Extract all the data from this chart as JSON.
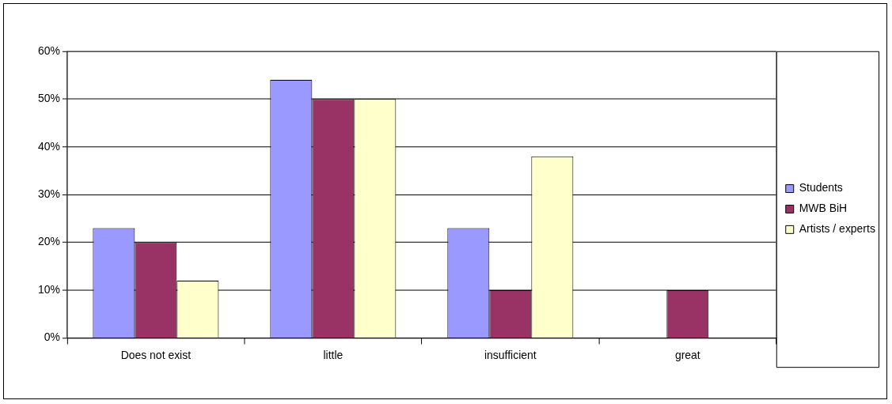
{
  "chart_data": {
    "type": "bar",
    "categories": [
      "Does not exist",
      "little",
      "insufficient",
      "great"
    ],
    "series": [
      {
        "name": "Students",
        "color": "#9999ff",
        "values": [
          23,
          54,
          23,
          0
        ]
      },
      {
        "name": "MWB BiH",
        "color": "#993366",
        "values": [
          20,
          50,
          10,
          10
        ]
      },
      {
        "name": "Artists / experts",
        "color": "#ffffcc",
        "values": [
          12,
          50,
          38,
          0
        ]
      }
    ],
    "ylim": [
      0,
      60
    ],
    "yticks": [
      {
        "value": 0,
        "label": "0%"
      },
      {
        "value": 10,
        "label": "10%"
      },
      {
        "value": 20,
        "label": "20%"
      },
      {
        "value": 30,
        "label": "30%"
      },
      {
        "value": 40,
        "label": "40%"
      },
      {
        "value": 50,
        "label": "50%"
      },
      {
        "value": 60,
        "label": "60%"
      }
    ],
    "grid": "y",
    "legend": "right"
  }
}
